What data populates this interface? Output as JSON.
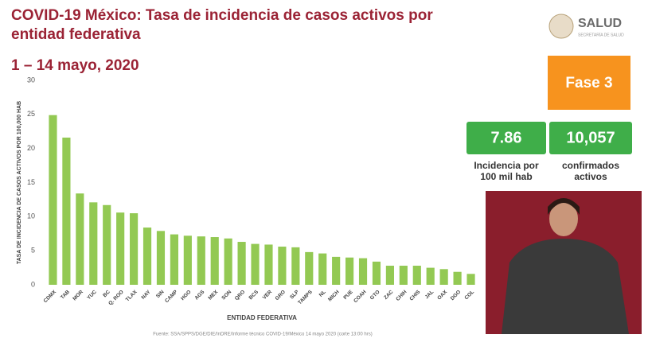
{
  "header": {
    "title_line1": "COVID-19 México: Tasa de incidencia de casos activos por",
    "title_line2": "entidad federativa",
    "date": "1 – 14 mayo, 2020",
    "logo": "SALUD",
    "logo_sub": "SECRETARÍA DE SALUD"
  },
  "phase": "Fase 3",
  "kpis": [
    {
      "value": 7.86,
      "caption_line1": "Incidencia por",
      "caption_line2": "100 mil hab"
    },
    {
      "value": {
        "value": 10057,
        "label": "10,057"
      },
      "caption_line1": "confirmados",
      "caption_line2": "activos"
    }
  ],
  "source": "Fuente: SSA/SPPS/DGE/DIE/InDRE/Informe técnico COVID-19/México 14 mayo 2020 (corte 13:00 hrs)",
  "chart_data": {
    "type": "bar",
    "y_label": "TASA DE INCIDENCIA DE CASOS ACTIVOS POR 100,000 HAB",
    "x_label": "ENTIDAD FEDERATIVA",
    "categories": [
      "CDMX",
      "TAB",
      "MOR",
      "YUC",
      "BC",
      "Q. ROO",
      "TLAX",
      "NAY",
      "SIN",
      "CAMP",
      "HGO",
      "AGS",
      "MEX",
      "SON",
      "QRO",
      "BCS",
      "VER",
      "GRO",
      "SLP",
      "TAMPS",
      "NL",
      "MICH",
      "PUE",
      "COAH",
      "GTO",
      "ZAC",
      "CHIH",
      "CHIS",
      "JAL",
      "OAX",
      "DGO",
      "COL"
    ],
    "values": [
      24.9,
      21.6,
      13.4,
      12.1,
      11.7,
      10.6,
      10.5,
      8.4,
      7.9,
      7.4,
      7.2,
      7.1,
      7.0,
      6.8,
      6.3,
      6.0,
      5.9,
      5.6,
      5.5,
      4.8,
      4.6,
      4.1,
      4.0,
      3.9,
      3.4,
      2.8,
      2.8,
      2.8,
      2.5,
      2.3,
      1.9,
      1.6
    ],
    "color": "#93c953",
    "ylim": [
      0,
      30
    ],
    "yticks": [
      0,
      5,
      10,
      15,
      20,
      25,
      30
    ],
    "grid": false
  }
}
